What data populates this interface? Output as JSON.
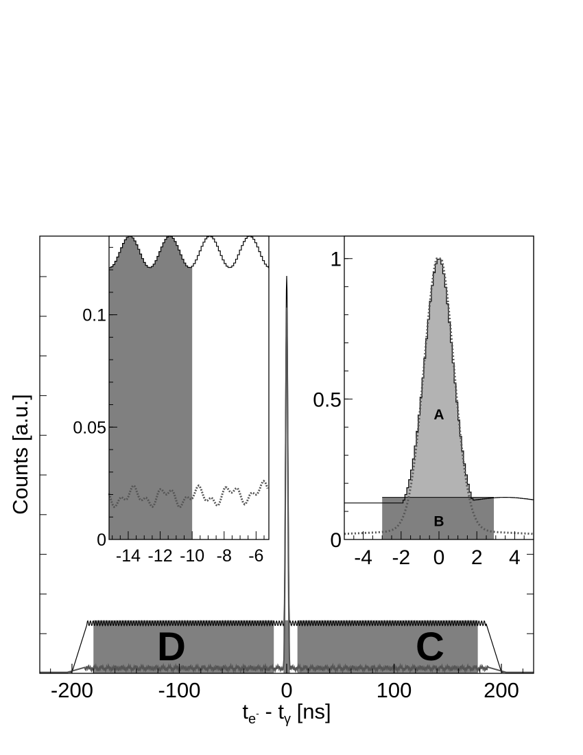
{
  "chart_data": [
    {
      "id": "main",
      "type": "line",
      "xlabel_main": "t",
      "xlabel_sub1": "e",
      "xlabel_sup": "-",
      "xlabel_mid": " - t",
      "xlabel_sub2": "γ",
      "xlabel_unit": " [ns]",
      "ylabel": "Counts [a.u.]",
      "xlim": [
        -230,
        230
      ],
      "xticks": [
        "-200",
        "-100",
        "0",
        "100",
        "200"
      ],
      "xtick_values": [
        -200,
        -100,
        0,
        100,
        200
      ],
      "series": [
        {
          "style": "solid-black",
          "description_values": {
            "plateau_level": 0.13,
            "plateau_range": [
              -190,
              190
            ],
            "peak_height": 1.0
          }
        },
        {
          "style": "solid-gray",
          "description_values": {
            "plateau_level": 0.012,
            "plateau_range": [
              -190,
              190
            ],
            "peak_height": 0.92
          }
        }
      ],
      "regions": [
        {
          "label": "D",
          "x_range": [
            -180,
            -12
          ]
        },
        {
          "label": "C",
          "x_range": [
            10,
            178
          ]
        },
        {
          "label": "",
          "x_range": [
            -3,
            3
          ]
        }
      ]
    },
    {
      "id": "inset-left",
      "type": "line",
      "xlim": [
        -15.2,
        -5.2
      ],
      "ylim": [
        0,
        0.135
      ],
      "xticks": [
        "-14",
        "-12",
        "-10",
        "-8",
        "-6"
      ],
      "xtick_values": [
        -14,
        -12,
        -10,
        -8,
        -6
      ],
      "yticks": [
        "0",
        "0.05",
        "0.1"
      ],
      "ytick_values": [
        0,
        0.05,
        0.1
      ],
      "shaded_x_range": [
        -15.2,
        -10
      ],
      "series": [
        {
          "style": "solid-black",
          "oscillation": {
            "mean": 0.128,
            "amplitude": 0.007,
            "period": 2.5,
            "peak_x": [
              -13.9,
              -11.4,
              -8.9,
              -6.4
            ]
          }
        },
        {
          "style": "dotted-gray",
          "baseline": 0.019
        }
      ]
    },
    {
      "id": "inset-right",
      "type": "area",
      "xlim": [
        -5,
        5
      ],
      "ylim": [
        0,
        1.08
      ],
      "xticks": [
        "-4",
        "-2",
        "0",
        "2",
        "4"
      ],
      "xtick_values": [
        -4,
        -2,
        0,
        2,
        4
      ],
      "yticks": [
        "0",
        "0.5",
        "1"
      ],
      "ytick_values": [
        0,
        0.5,
        1
      ],
      "regions": [
        {
          "label": "A",
          "x_range": [
            -3,
            2.9
          ],
          "level": "above 0.15"
        },
        {
          "label": "B",
          "x_range": [
            -3,
            2.9
          ],
          "level": "below 0.15"
        }
      ],
      "baseline_level": 0.15,
      "series": [
        {
          "style": "solid-black-histogram",
          "peak": 1.0
        },
        {
          "style": "dotted-gray",
          "peak": 1.0
        }
      ]
    }
  ]
}
